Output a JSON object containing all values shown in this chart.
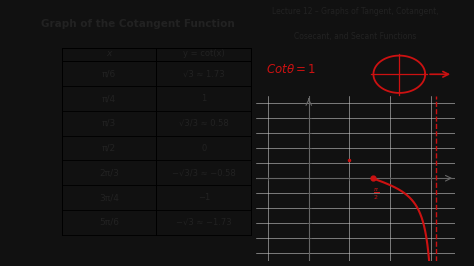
{
  "title_left": "Graph of the Cotangent Function",
  "title_right_line1": "Lecture 12 – Graphs of Tangent, Cotangent,",
  "title_right_line2": "Cosecant, and Secant Functions",
  "table_headers": [
    "x",
    "y = cot(x)"
  ],
  "table_rows_x": [
    "π/6",
    "π/4",
    "π/3",
    "π/2",
    "2π/3",
    "3π/4",
    "5π/6"
  ],
  "table_rows_y": [
    "√3 ≈ 1.73",
    "1",
    "√3/3 ≈ 0.58",
    "0",
    "−√3/3 ≈ −0.58",
    "−1",
    "−√3 ≈ −1.73"
  ],
  "bg_color": "#f0ece0",
  "white": "#ffffff",
  "black_bar": "#111111",
  "curve_color": "#cc1111",
  "axis_color": "#666666",
  "text_color": "#222222",
  "pi": 3.14159265358979,
  "graph_xlim": [
    -1.3,
    3.6
  ],
  "graph_ylim": [
    -5.5,
    5.5
  ]
}
